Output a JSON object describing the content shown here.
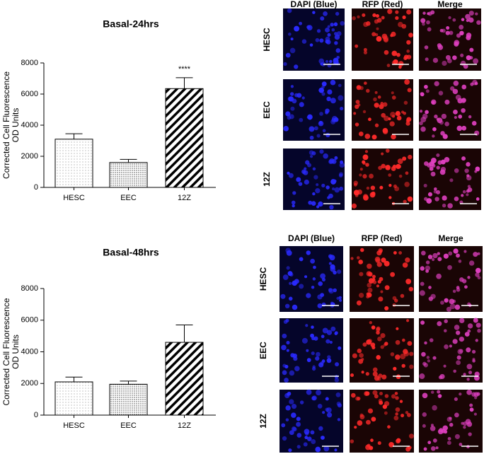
{
  "chart_data": [
    {
      "type": "bar",
      "title": "Basal-24hrs",
      "ylabel": [
        "Corrected Cell Fluorescence",
        "OD Units"
      ],
      "categories": [
        "HESC",
        "EEC",
        "12Z"
      ],
      "values": [
        3100,
        1600,
        6350
      ],
      "errors": [
        350,
        200,
        700
      ],
      "value_annotations": [
        null,
        null,
        "****"
      ],
      "color": "#000000",
      "ylim": [
        0,
        8000
      ],
      "yticks": [
        0,
        2000,
        4000,
        6000,
        8000
      ]
    },
    {
      "type": "bar",
      "title": "Basal-48hrs",
      "ylabel": [
        "Corrected Cell Fluorescence",
        "OD Units"
      ],
      "categories": [
        "HESC",
        "EEC",
        "12Z"
      ],
      "values": [
        2100,
        1950,
        4600
      ],
      "errors": [
        300,
        200,
        1100
      ],
      "value_annotations": [
        null,
        null,
        null
      ],
      "color": "#000000",
      "ylim": [
        0,
        8000
      ],
      "yticks": [
        0,
        2000,
        4000,
        6000,
        8000
      ]
    }
  ],
  "image_panels": [
    {
      "columns": [
        "DAPI (Blue)",
        "RFP (Red)",
        "Merge"
      ],
      "rows": [
        "HESC",
        "EEC",
        "12Z"
      ]
    },
    {
      "columns": [
        "DAPI (Blue)",
        "RFP (Red)",
        "Merge"
      ],
      "rows": [
        "HESC",
        "EEC",
        "12Z"
      ]
    }
  ]
}
